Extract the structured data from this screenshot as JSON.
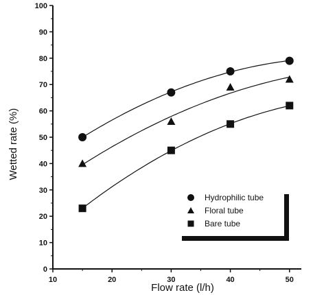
{
  "chart_data": {
    "type": "scatter",
    "xlabel": "Flow rate (l/h)",
    "ylabel": "Wetted rate (%)",
    "xlim": [
      10,
      52
    ],
    "ylim": [
      0,
      100
    ],
    "x_ticks": [
      10,
      20,
      30,
      40,
      50
    ],
    "y_ticks": [
      0,
      10,
      20,
      30,
      40,
      50,
      60,
      70,
      80,
      90,
      100
    ],
    "grid": false,
    "legend_position": "bottom-right",
    "fit_lines": true,
    "series": [
      {
        "name": "Hydrophilic tube",
        "marker": "circle",
        "x": [
          15,
          30,
          40,
          50
        ],
        "y": [
          50,
          67,
          75,
          79
        ]
      },
      {
        "name": "Floral tube",
        "marker": "triangle",
        "x": [
          15,
          30,
          40,
          50
        ],
        "y": [
          40,
          56,
          69,
          72
        ]
      },
      {
        "name": "Bare tube",
        "marker": "square",
        "x": [
          15,
          30,
          40,
          50
        ],
        "y": [
          23,
          45,
          55,
          62
        ]
      }
    ]
  },
  "colors": {
    "ink": "#111111",
    "background": "#ffffff"
  }
}
